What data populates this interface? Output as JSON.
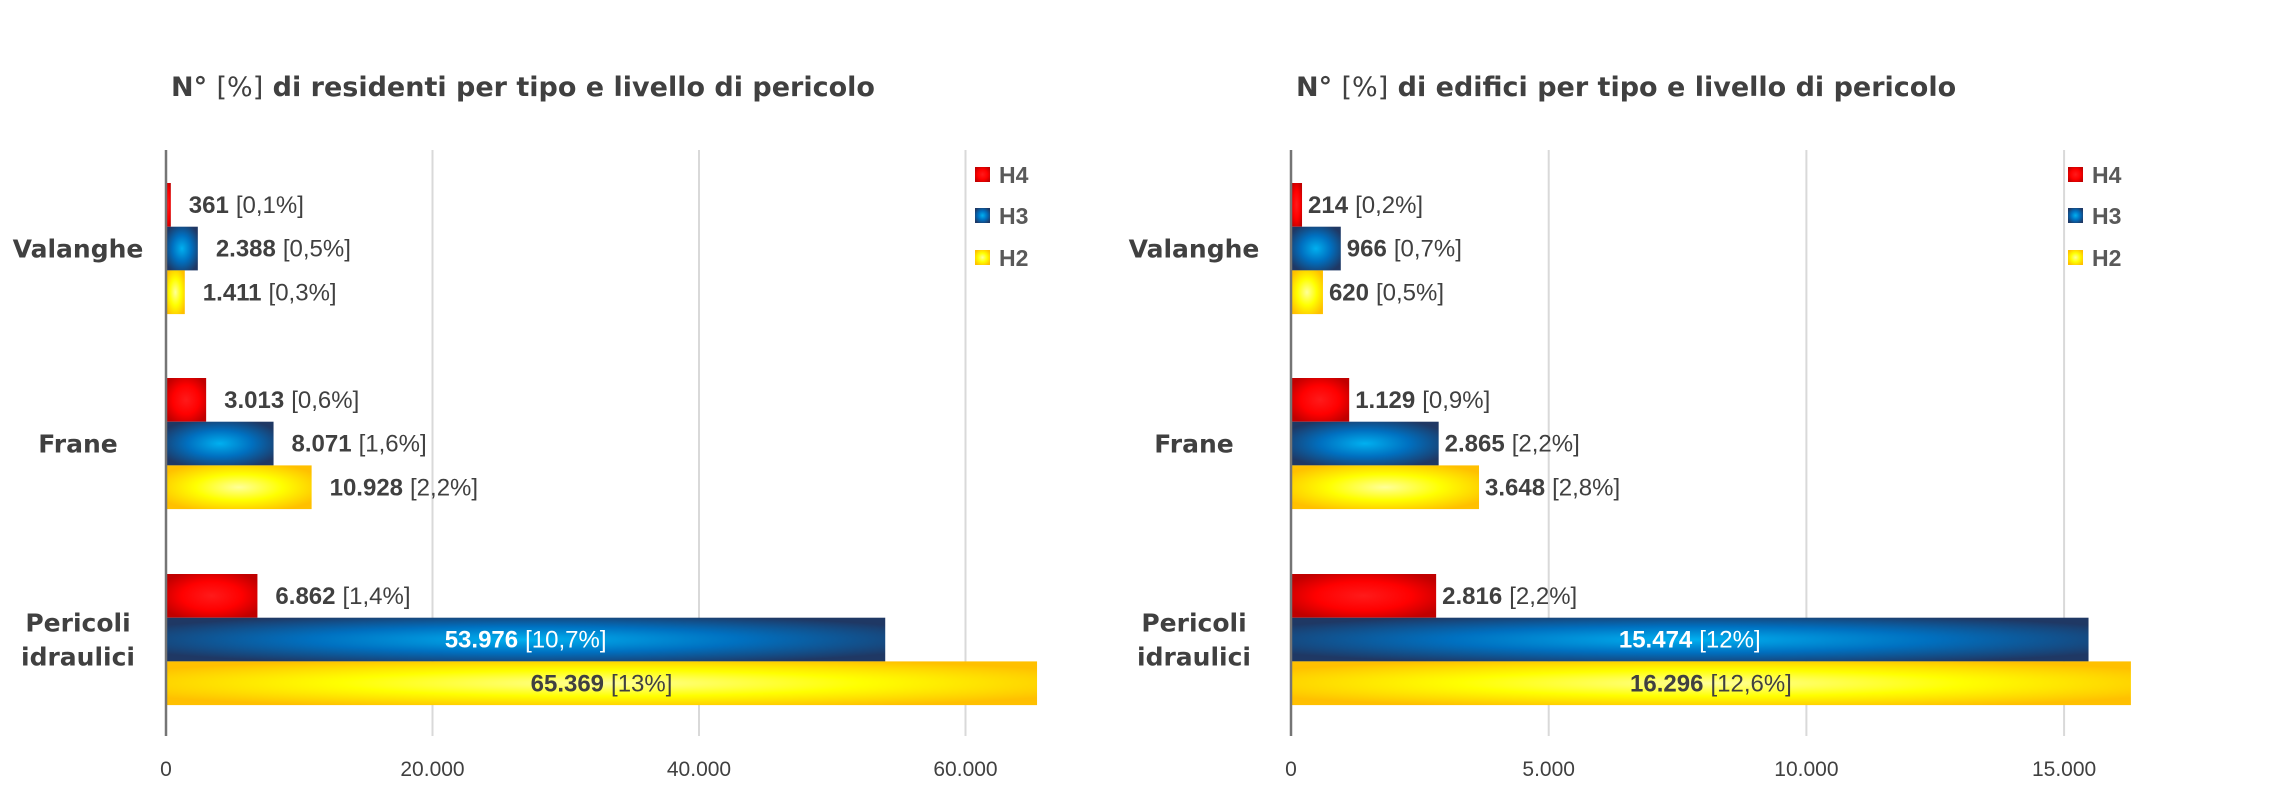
{
  "chart_data": [
    {
      "type": "bar",
      "orientation": "horizontal",
      "title_prefix": "N°",
      "title_bracket": "[%]",
      "title_rest": "di residenti per tipo e livello di pericolo",
      "title": "N° [%] di residenti per tipo e livello di pericolo",
      "categories": [
        "Valanghe",
        "Frane",
        "Pericoli idraulici"
      ],
      "category_lines": [
        [
          "Valanghe"
        ],
        [
          "Frane"
        ],
        [
          "Pericoli",
          "idraulici"
        ]
      ],
      "series": [
        {
          "name": "H4",
          "color": "#FF0000",
          "values": [
            361,
            3013,
            6862
          ],
          "value_labels": [
            "361",
            "3.013",
            "6.862"
          ],
          "percent_labels": [
            "[0,1%]",
            "[0,6%]",
            "[1,4%]"
          ]
        },
        {
          "name": "H3",
          "color": "#0070C0",
          "values": [
            2388,
            8071,
            53976
          ],
          "value_labels": [
            "2.388",
            "8.071",
            "53.976"
          ],
          "percent_labels": [
            "[0,5%]",
            "[1,6%]",
            "[10,7%]"
          ]
        },
        {
          "name": "H2",
          "color": "#FFFF00",
          "values": [
            1411,
            10928,
            65369
          ],
          "value_labels": [
            "1.411",
            "10.928",
            "65.369"
          ],
          "percent_labels": [
            "[0,3%]",
            "[2,2%]",
            "[13%]"
          ]
        }
      ],
      "xlim": [
        0,
        65369
      ],
      "xticks": [
        0,
        20000,
        40000,
        60000
      ],
      "xtick_labels": [
        "0",
        "20.000",
        "40.000",
        "60.000"
      ],
      "grid": true,
      "legend": [
        "H4",
        "H3",
        "H2"
      ],
      "legend_position": "top-right",
      "xlabel": "",
      "ylabel": ""
    },
    {
      "type": "bar",
      "orientation": "horizontal",
      "title_prefix": "N°",
      "title_bracket": "[%]",
      "title_rest": "di edifici per tipo e livello di pericolo",
      "title": "N° [%] di edifici per tipo e livello di pericolo",
      "categories": [
        "Valanghe",
        "Frane",
        "Pericoli idraulici"
      ],
      "category_lines": [
        [
          "Valanghe"
        ],
        [
          "Frane"
        ],
        [
          "Pericoli",
          "idraulici"
        ]
      ],
      "series": [
        {
          "name": "H4",
          "color": "#FF0000",
          "values": [
            214,
            1129,
            2816
          ],
          "value_labels": [
            "214",
            "1.129",
            "2.816"
          ],
          "percent_labels": [
            "[0,2%]",
            "[0,9%]",
            "[2,2%]"
          ]
        },
        {
          "name": "H3",
          "color": "#0070C0",
          "values": [
            966,
            2865,
            15474
          ],
          "value_labels": [
            "966",
            "2.865",
            "15.474"
          ],
          "percent_labels": [
            "[0,7%]",
            "[2,2%]",
            "[12%]"
          ]
        },
        {
          "name": "H2",
          "color": "#FFFF00",
          "values": [
            620,
            3648,
            16296
          ],
          "value_labels": [
            "620",
            "3.648",
            "16.296"
          ],
          "percent_labels": [
            "[0,5%]",
            "[2,8%]",
            "[12,6%]"
          ]
        }
      ],
      "xlim": [
        0,
        16296
      ],
      "xticks": [
        0,
        5000,
        10000,
        15000
      ],
      "xtick_labels": [
        "0",
        "5.000",
        "10.000",
        "15.000"
      ],
      "grid": true,
      "legend": [
        "H4",
        "H3",
        "H2"
      ],
      "legend_position": "top-right",
      "xlabel": "",
      "ylabel": ""
    }
  ]
}
